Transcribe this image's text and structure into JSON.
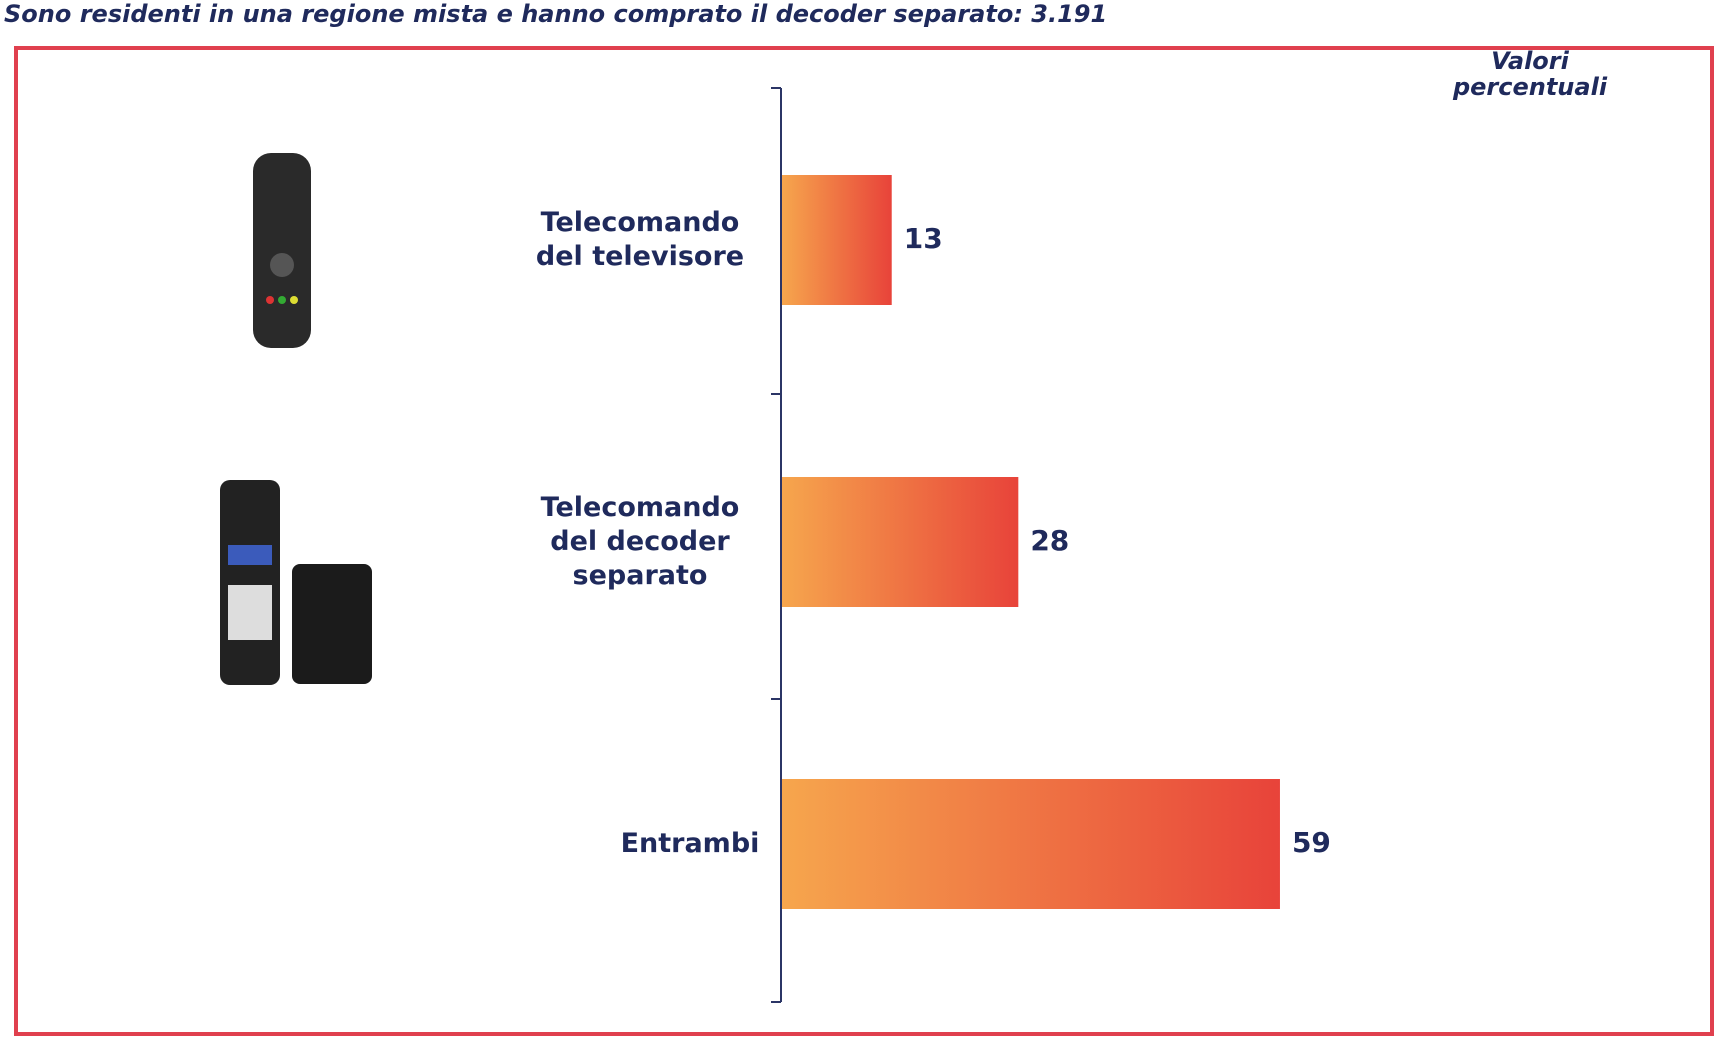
{
  "chart_data": {
    "type": "bar",
    "orientation": "horizontal",
    "title": "Sono residenti in una regione mista e hanno comprato il decoder separato: 3.191",
    "subtitle": "Valori percentuali",
    "categories": [
      "Telecomando del televisore",
      "Telecomando del decoder separato",
      "Entrambi"
    ],
    "values": [
      13,
      28,
      59
    ],
    "gradient": [
      "#f6a64d",
      "#e8433a"
    ]
  }
}
